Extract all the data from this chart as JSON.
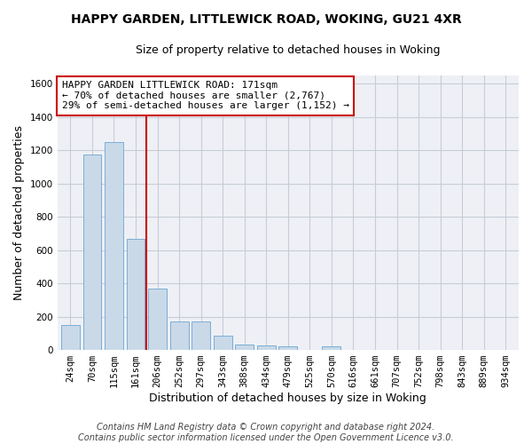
{
  "title_line1": "HAPPY GARDEN, LITTLEWICK ROAD, WOKING, GU21 4XR",
  "title_line2": "Size of property relative to detached houses in Woking",
  "xlabel": "Distribution of detached houses by size in Woking",
  "ylabel": "Number of detached properties",
  "categories": [
    "24sqm",
    "70sqm",
    "115sqm",
    "161sqm",
    "206sqm",
    "252sqm",
    "297sqm",
    "343sqm",
    "388sqm",
    "434sqm",
    "479sqm",
    "525sqm",
    "570sqm",
    "616sqm",
    "661sqm",
    "707sqm",
    "752sqm",
    "798sqm",
    "843sqm",
    "889sqm",
    "934sqm"
  ],
  "values": [
    150,
    1175,
    1250,
    670,
    370,
    170,
    170,
    85,
    35,
    25,
    20,
    0,
    20,
    0,
    0,
    0,
    0,
    0,
    0,
    0,
    0
  ],
  "bar_color": "#c9d9e8",
  "bar_edge_color": "#7aaed6",
  "vline_color": "#cc0000",
  "annotation_text": "HAPPY GARDEN LITTLEWICK ROAD: 171sqm\n← 70% of detached houses are smaller (2,767)\n29% of semi-detached houses are larger (1,152) →",
  "annotation_box_facecolor": "#ffffff",
  "annotation_box_edgecolor": "#cc0000",
  "ylim": [
    0,
    1650
  ],
  "yticks": [
    0,
    200,
    400,
    600,
    800,
    1000,
    1200,
    1400,
    1600
  ],
  "grid_color": "#c8ccd6",
  "plot_bg_color": "#eef0f5",
  "footer_text": "Contains HM Land Registry data © Crown copyright and database right 2024.\nContains public sector information licensed under the Open Government Licence v3.0.",
  "title_fontsize": 10,
  "subtitle_fontsize": 9,
  "axis_label_fontsize": 9,
  "tick_fontsize": 7.5,
  "annotation_fontsize": 8,
  "footer_fontsize": 7
}
